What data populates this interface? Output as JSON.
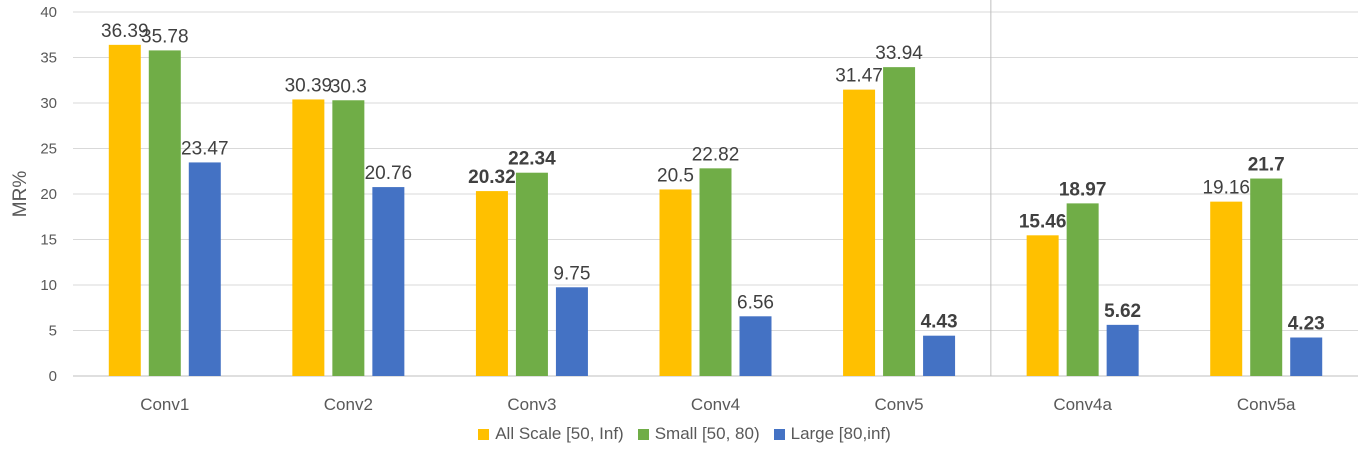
{
  "chart_data": {
    "type": "bar",
    "title": "",
    "xlabel": "",
    "ylabel": "MR%",
    "ylim": [
      0,
      40
    ],
    "yticks": [
      "0",
      "5",
      "10",
      "15",
      "20",
      "25",
      "30",
      "35",
      "40"
    ],
    "categories": [
      "Conv1",
      "Conv2",
      "Conv3",
      "Conv4",
      "Conv5",
      "Conv4a",
      "Conv5a"
    ],
    "series": [
      {
        "name": "All Scale [50, Inf)",
        "color": "#FFC000",
        "values": [
          36.39,
          30.39,
          20.32,
          20.5,
          31.47,
          15.46,
          19.16
        ],
        "labels": [
          "36.39",
          "30.39",
          "20.32",
          "20.5",
          "31.47",
          "15.46",
          "19.16"
        ],
        "bold": [
          false,
          false,
          true,
          false,
          false,
          true,
          false
        ]
      },
      {
        "name": "Small [50, 80)",
        "color": "#70AD47",
        "values": [
          35.78,
          30.3,
          22.34,
          22.82,
          33.94,
          18.97,
          21.7
        ],
        "labels": [
          "35.78",
          "30.3",
          "22.34",
          "22.82",
          "33.94",
          "18.97",
          "21.7"
        ],
        "bold": [
          false,
          false,
          true,
          false,
          false,
          true,
          true
        ]
      },
      {
        "name": "Large [80,inf)",
        "color": "#4472C4",
        "values": [
          23.47,
          20.76,
          9.75,
          6.56,
          4.43,
          5.62,
          4.23
        ],
        "labels": [
          "23.47",
          "20.76",
          "9.75",
          "6.56",
          "4.43",
          "5.62",
          "4.23"
        ],
        "bold": [
          false,
          false,
          false,
          false,
          true,
          true,
          true
        ]
      }
    ],
    "separator_after_category": "Conv5",
    "grid": true,
    "legend_position": "bottom"
  }
}
